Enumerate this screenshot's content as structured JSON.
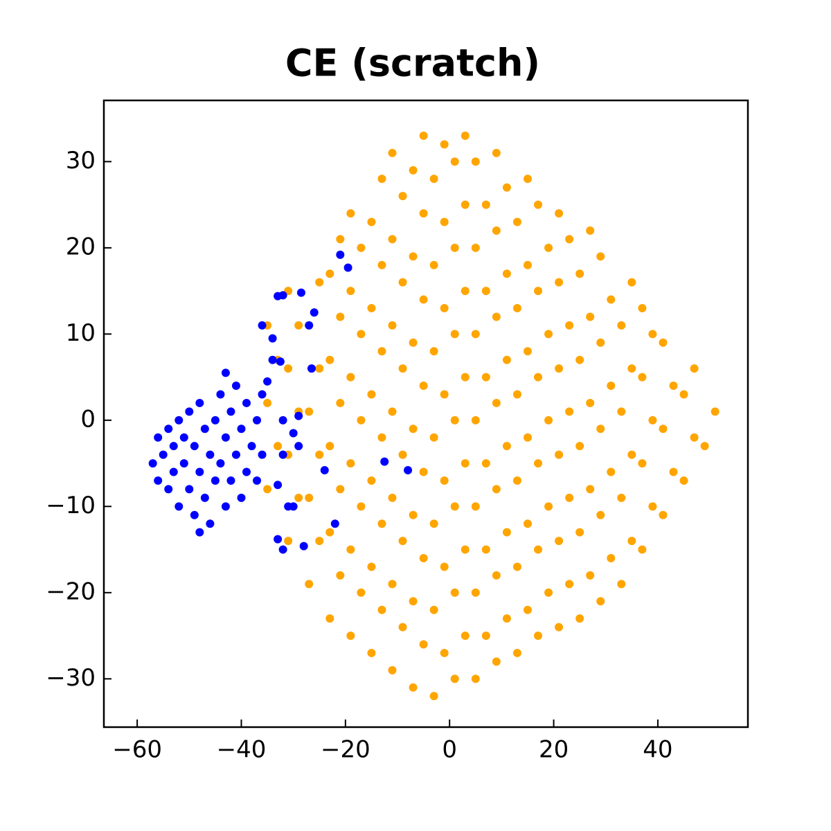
{
  "chart_data": {
    "type": "scatter",
    "title": "CE (scratch)",
    "xlim": [
      -66.4,
      57.3
    ],
    "ylim": [
      -35.6,
      37.1
    ],
    "xticks": [
      {
        "value": -60,
        "label": "−60"
      },
      {
        "value": -40,
        "label": "−40"
      },
      {
        "value": -20,
        "label": "−20"
      },
      0,
      20,
      40
    ],
    "yticks": [
      {
        "value": -30,
        "label": "−30"
      },
      {
        "value": -20,
        "label": "−20"
      },
      {
        "value": -10,
        "label": "−10"
      },
      0,
      10,
      20,
      30
    ],
    "series": [
      {
        "color": "#ffa500",
        "x": [
          -35,
          -33,
          -35,
          -33,
          -35,
          -31,
          -29,
          -31,
          -29,
          -31,
          -29,
          -31,
          -27,
          -25,
          -27,
          -25,
          -27,
          -25,
          -27,
          -25,
          -23,
          -21,
          -23,
          -21,
          -23,
          -21,
          -23,
          -21,
          -23,
          -21,
          -19,
          -17,
          -19,
          -17,
          -19,
          -17,
          -19,
          -17,
          -19,
          -17,
          -19,
          -15,
          -13,
          -15,
          -13,
          -15,
          -13,
          -15,
          -13,
          -15,
          -13,
          -15,
          -13,
          -11,
          -9,
          -11,
          -9,
          -11,
          -9,
          -11,
          -9,
          -11,
          -9,
          -11,
          -9,
          -11,
          -7,
          -5,
          -7,
          -5,
          -7,
          -5,
          -7,
          -5,
          -7,
          -5,
          -7,
          -5,
          -7,
          -5,
          -3,
          -1,
          -3,
          -1,
          -3,
          -1,
          -3,
          -1,
          -3,
          -1,
          -3,
          -1,
          -3,
          -1,
          1,
          3,
          1,
          3,
          1,
          3,
          1,
          3,
          1,
          3,
          1,
          3,
          1,
          3,
          5,
          7,
          5,
          7,
          5,
          7,
          5,
          7,
          5,
          7,
          5,
          7,
          5,
          9,
          11,
          9,
          11,
          9,
          11,
          9,
          11,
          9,
          11,
          9,
          11,
          9,
          13,
          15,
          13,
          15,
          13,
          15,
          13,
          15,
          13,
          15,
          13,
          15,
          17,
          19,
          17,
          19,
          17,
          19,
          17,
          19,
          17,
          19,
          17,
          21,
          23,
          21,
          23,
          21,
          23,
          21,
          23,
          21,
          23,
          21,
          25,
          27,
          25,
          27,
          25,
          27,
          25,
          27,
          25,
          27,
          29,
          31,
          29,
          31,
          29,
          31,
          29,
          31,
          29,
          33,
          35,
          33,
          35,
          33,
          35,
          33,
          35,
          37,
          39,
          37,
          39,
          37,
          39,
          37,
          41,
          43,
          41,
          43,
          41,
          45,
          47,
          45,
          47,
          49,
          51
        ],
        "values": [
          -8,
          -3,
          2,
          7,
          11,
          -14,
          -9,
          -4,
          1,
          6,
          11,
          15,
          -19,
          -14,
          -9,
          -4,
          1,
          6,
          11,
          16,
          -23,
          -18,
          -13,
          -8,
          -3,
          2,
          7,
          12,
          17,
          21,
          -25,
          -20,
          -15,
          -10,
          -5,
          0,
          5,
          10,
          15,
          20,
          24,
          -27,
          -22,
          -17,
          -12,
          -7,
          -2,
          3,
          8,
          13,
          18,
          23,
          28,
          -29,
          -24,
          -19,
          -14,
          -9,
          -4,
          1,
          6,
          11,
          16,
          21,
          26,
          31,
          -31,
          -26,
          -21,
          -16,
          -11,
          -6,
          -1,
          4,
          9,
          14,
          19,
          24,
          29,
          33,
          -32,
          -27,
          -22,
          -17,
          -12,
          -7,
          -2,
          3,
          8,
          13,
          18,
          23,
          28,
          32,
          -30,
          -25,
          -20,
          -15,
          -10,
          -5,
          0,
          5,
          10,
          15,
          20,
          25,
          30,
          33,
          -30,
          -25,
          -20,
          -15,
          -10,
          -5,
          0,
          5,
          10,
          15,
          20,
          25,
          30,
          -28,
          -23,
          -18,
          -13,
          -8,
          -3,
          2,
          7,
          12,
          17,
          22,
          27,
          31,
          -27,
          -22,
          -17,
          -12,
          -7,
          -2,
          3,
          8,
          13,
          18,
          23,
          28,
          -25,
          -20,
          -15,
          -10,
          -5,
          0,
          5,
          10,
          15,
          20,
          25,
          -24,
          -19,
          -14,
          -9,
          -4,
          1,
          6,
          11,
          16,
          21,
          24,
          -23,
          -18,
          -13,
          -8,
          -3,
          2,
          7,
          12,
          17,
          22,
          -21,
          -16,
          -11,
          -6,
          -1,
          4,
          9,
          14,
          19,
          -19,
          -14,
          -9,
          -4,
          1,
          6,
          11,
          16,
          -15,
          -10,
          -5,
          0,
          5,
          10,
          13,
          -11,
          -6,
          -1,
          4,
          9,
          -7,
          -2,
          3,
          6,
          -3,
          1
        ]
      },
      {
        "color": "#0000ff",
        "x": [
          -57,
          -56,
          -56,
          -55,
          -54,
          -54,
          -53,
          -53,
          -52,
          -52,
          -51,
          -51,
          -50,
          -50,
          -49,
          -49,
          -48,
          -48,
          -48,
          -47,
          -47,
          -46,
          -46,
          -45,
          -45,
          -44,
          -44,
          -43,
          -43,
          -42,
          -42,
          -41,
          -41,
          -40,
          -40,
          -39,
          -39,
          -38,
          -37,
          -37,
          -36,
          -36,
          -21,
          -19.5,
          -28.5,
          -32,
          -33,
          -26,
          -27,
          -36,
          -34,
          -32.5,
          -26.5,
          -34,
          -43,
          -35,
          -32,
          -29,
          -30,
          -32,
          -29,
          -33,
          -31,
          -30,
          -24,
          -12.5,
          -8,
          -22,
          -33,
          -32,
          -28
        ],
        "values": [
          -5,
          -2,
          -7,
          -4,
          -1,
          -8,
          -3,
          -6,
          0,
          -10,
          -2,
          -5,
          1,
          -8,
          -3,
          -11,
          -6,
          2,
          -13,
          -1,
          -9,
          -4,
          -12,
          0,
          -7,
          3,
          -5,
          -2,
          -10,
          1,
          -7,
          4,
          -4,
          -1,
          -9,
          2,
          -6,
          -3,
          0,
          -7,
          3,
          -4,
          19.2,
          17.7,
          14.8,
          14.5,
          14.4,
          12.5,
          11,
          11,
          9.5,
          6.8,
          6,
          7,
          5.5,
          4.5,
          0,
          0.5,
          -1.5,
          -4,
          -3,
          -7.5,
          -10,
          -10,
          -5.8,
          -4.8,
          -5.8,
          -12,
          -13.8,
          -15,
          -14.6
        ]
      }
    ]
  }
}
